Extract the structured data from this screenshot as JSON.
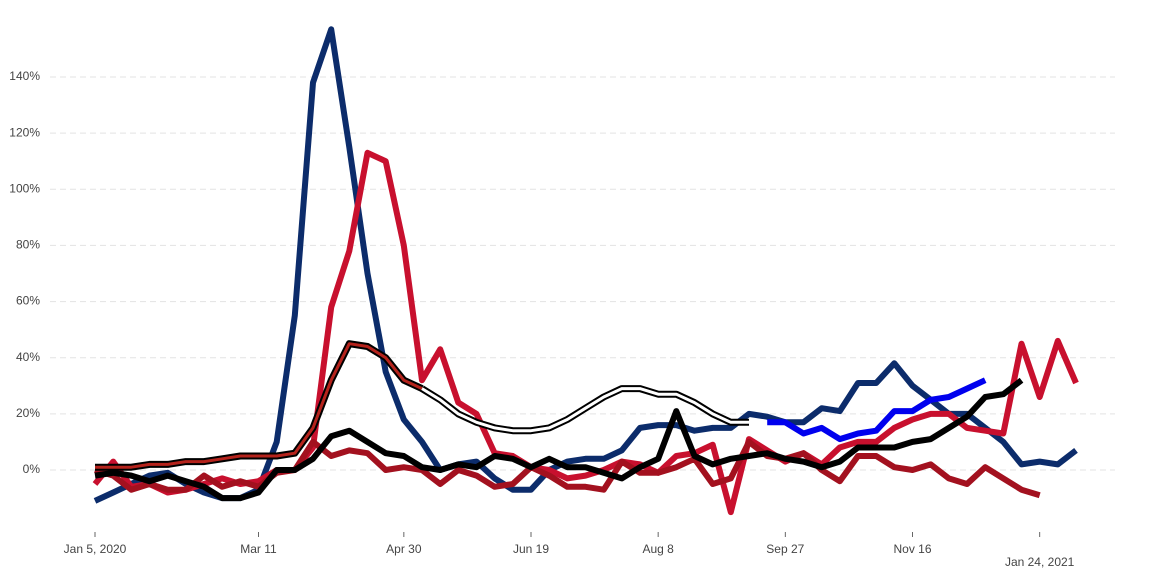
{
  "chart_data": {
    "type": "line",
    "categories": [
      "Jan 5, 2020",
      null,
      null,
      null,
      null,
      null,
      null,
      null,
      null,
      "Mar 11",
      null,
      null,
      null,
      null,
      null,
      null,
      null,
      "Apr 30",
      null,
      null,
      null,
      null,
      null,
      null,
      "Jun 19",
      null,
      null,
      null,
      null,
      null,
      null,
      "Aug 8",
      null,
      null,
      null,
      null,
      null,
      null,
      "Sep 27",
      null,
      null,
      null,
      null,
      null,
      null,
      "Nov 16",
      null,
      null,
      null,
      null,
      null,
      null,
      "Jan 24, 2021",
      null,
      null
    ],
    "ylim": [
      -22,
      158
    ],
    "yticks": [
      {
        "value": 0,
        "label": "0%"
      },
      {
        "value": 20,
        "label": "20%"
      },
      {
        "value": 40,
        "label": "40%"
      },
      {
        "value": 60,
        "label": "60%"
      },
      {
        "value": 80,
        "label": "80%"
      },
      {
        "value": 100,
        "label": "100%"
      },
      {
        "value": 120,
        "label": "120%"
      },
      {
        "value": 140,
        "label": "140%"
      }
    ],
    "grid": true,
    "series": [
      {
        "color": "#0c2c6b",
        "values": [
          -11,
          -8,
          -5,
          -2,
          -1,
          -5,
          -8,
          -10,
          -10,
          -7,
          10,
          55,
          138,
          157,
          115,
          70,
          35,
          18,
          10,
          0,
          2,
          3,
          -3,
          -7,
          -7,
          0,
          3,
          4,
          4,
          7,
          15,
          16,
          16,
          14,
          15,
          15,
          20,
          19,
          17,
          17,
          22,
          21,
          31,
          31,
          38,
          30,
          25,
          20,
          20,
          15,
          10,
          2,
          3,
          2,
          7
        ]
      },
      {
        "color": "#c8102e",
        "values": [
          -5,
          3,
          -6,
          -5,
          -8,
          -7,
          -5,
          -3,
          -5,
          -4,
          0,
          0,
          8,
          58,
          78,
          113,
          110,
          80,
          32,
          43,
          24,
          20,
          6,
          5,
          1,
          0,
          -3,
          -2,
          0,
          3,
          2,
          -1,
          5,
          6,
          9,
          -15,
          11,
          7,
          3,
          6,
          2,
          8,
          10,
          10,
          15,
          18,
          20,
          20,
          15,
          14,
          13,
          45,
          26,
          46,
          31
        ]
      },
      {
        "color": "#a3111f",
        "values": [
          0,
          -2,
          -7,
          -5,
          -7,
          -7,
          -2,
          -6,
          -4,
          -6,
          -1,
          0,
          10,
          5,
          7,
          6,
          0,
          1,
          0,
          -5,
          0,
          -2,
          -6,
          -5,
          1,
          -2,
          -6,
          -6,
          -7,
          3,
          -1,
          -1,
          1,
          4,
          -5,
          -3,
          10,
          5,
          4,
          6,
          0,
          -4,
          5,
          5,
          1,
          0,
          2,
          -3,
          -5,
          1,
          -3,
          -7,
          -9,
          null,
          null
        ]
      },
      {
        "color": "#000000",
        "values": [
          -2,
          -1,
          -2,
          -4,
          -2,
          -4,
          -6,
          -10,
          -10,
          -8,
          0,
          0,
          4,
          12,
          14,
          10,
          6,
          5,
          1,
          0,
          2,
          1,
          5,
          4,
          1,
          4,
          1,
          1,
          -1,
          -3,
          1,
          4,
          21,
          5,
          2,
          4,
          5,
          6,
          4,
          3,
          1,
          3,
          8,
          8,
          8,
          10,
          11,
          15,
          19,
          26,
          27,
          32,
          null,
          null,
          null
        ]
      },
      {
        "color": "#b5231c",
        "outline": "#000000",
        "values": [
          1,
          1,
          1,
          2,
          2,
          3,
          3,
          4,
          5,
          5,
          5,
          6,
          15,
          32,
          45,
          44,
          40,
          32,
          29,
          null,
          null,
          null,
          null,
          null,
          null,
          null,
          null,
          null,
          null,
          null,
          null,
          null,
          null,
          null,
          null,
          null,
          null,
          null,
          null,
          null,
          null,
          null,
          null,
          null,
          null,
          null,
          null,
          null,
          null,
          null,
          null,
          null,
          null,
          null,
          null
        ]
      },
      {
        "color": "#ffffff",
        "outline": "#000000",
        "values": [
          null,
          null,
          null,
          null,
          null,
          null,
          null,
          null,
          null,
          null,
          null,
          null,
          null,
          null,
          null,
          null,
          null,
          null,
          29,
          25,
          20,
          17,
          15,
          14,
          14,
          15,
          18,
          22,
          26,
          29,
          29,
          27,
          27,
          24,
          20,
          17,
          17,
          null,
          null,
          null,
          null,
          null,
          null,
          null,
          null,
          null,
          null,
          null,
          null,
          null,
          null,
          null,
          null,
          null,
          null
        ]
      },
      {
        "color": "#0000ee",
        "values": [
          null,
          null,
          null,
          null,
          null,
          null,
          null,
          null,
          null,
          null,
          null,
          null,
          null,
          null,
          null,
          null,
          null,
          null,
          null,
          null,
          null,
          null,
          null,
          null,
          null,
          null,
          null,
          null,
          null,
          null,
          null,
          null,
          null,
          null,
          null,
          null,
          null,
          17,
          17,
          13,
          15,
          11,
          13,
          14,
          21,
          21,
          25,
          26,
          29,
          32,
          null,
          null,
          null,
          null,
          null
        ]
      }
    ]
  }
}
